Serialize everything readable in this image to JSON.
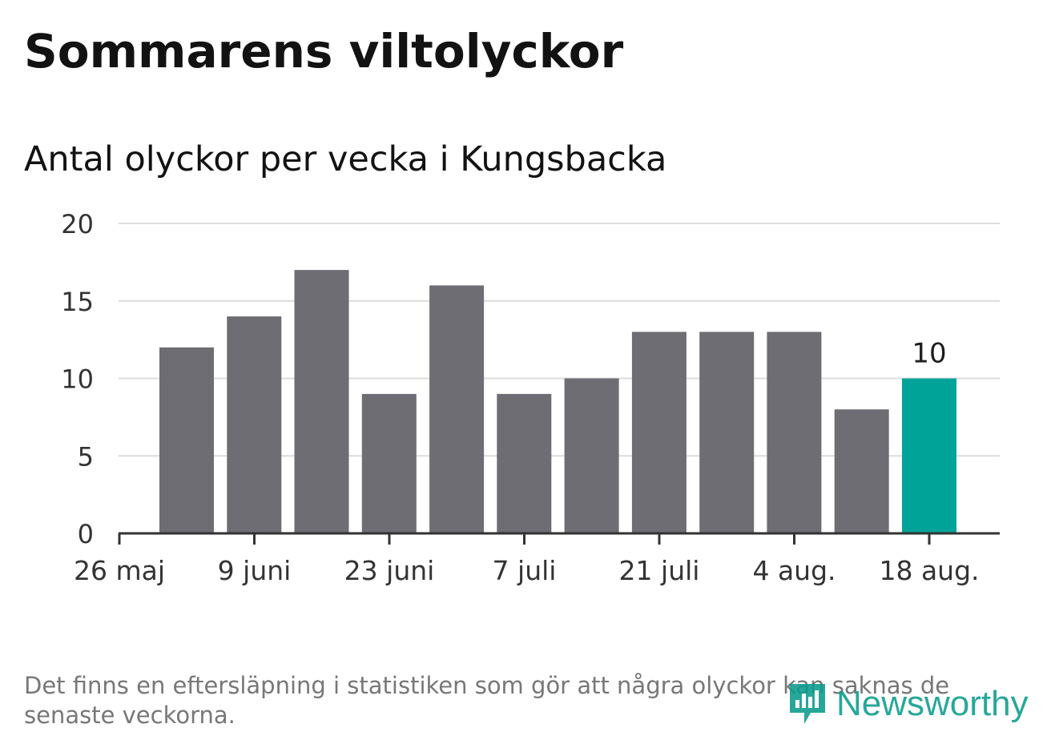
{
  "title": "Sommarens viltolyckor",
  "subtitle": "Antal olyckor per vecka i Kungsbacka",
  "footnote": "Det finns en eftersläpning i statistiken som gör att några olyckor kan saknas de senaste veckorna.",
  "logo": {
    "text": "Newsworthy",
    "icon": "newsworthy-logo-icon",
    "color": "#0a9c8c"
  },
  "chart_data": {
    "type": "bar",
    "title": "Antal olyckor per vecka i Kungsbacka",
    "xlabel": "",
    "ylabel": "",
    "ylim": [
      0,
      20
    ],
    "yticks": [
      0,
      5,
      10,
      15,
      20
    ],
    "grid": true,
    "legend": "none",
    "bar_color": "#6e6d73",
    "highlight_color": "#00a398",
    "x_tick_labels": [
      "26 maj",
      "9 juni",
      "23 juni",
      "7 juli",
      "21 juli",
      "4 aug.",
      "18 aug."
    ],
    "values": [
      12,
      14,
      17,
      9,
      16,
      9,
      10,
      13,
      13,
      13,
      8,
      10
    ],
    "highlight_index": 11,
    "annotations": [
      {
        "index": 11,
        "text": "10"
      }
    ]
  }
}
